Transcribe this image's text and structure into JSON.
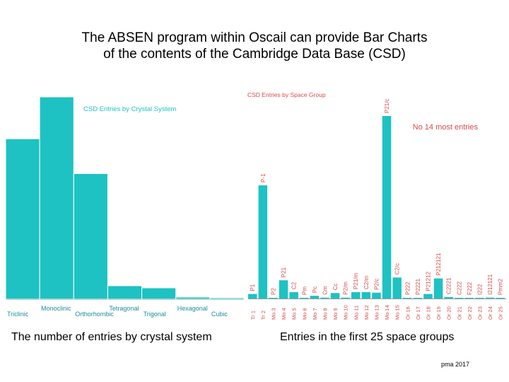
{
  "slide_title": "The ABSEN program within Oscail can provide Bar Charts\nof the contents of the Cambridge Data Base (CSD)",
  "left_caption": "The number of entries by crystal system",
  "right_caption": "Entries in the first 25 space groups",
  "credit": "pma 2017",
  "colors": {
    "bar": "#1ec2c2",
    "accent_text": "#d84a4a",
    "axis": "#9a9a9a"
  },
  "chart_data": [
    {
      "type": "bar",
      "title": "CSD Entries by Crystal System",
      "categories": [
        "Triclinic",
        "Monoclinic",
        "Orthorhombic",
        "Tetragonal",
        "Trigonal",
        "Hexagonal",
        "Cubic"
      ],
      "values": [
        226,
        285,
        177,
        19,
        16,
        3,
        2
      ],
      "ylim": [
        0,
        285
      ],
      "grid": false,
      "legend": "none"
    },
    {
      "type": "bar",
      "title": "CSD Entries by Space Group",
      "annotation": "No 14 most entries",
      "categories": [
        "Tr 1",
        "Tr 2",
        "Mo 3",
        "Mo 4",
        "Mo 5",
        "Mo 6",
        "Mo 7",
        "Mo 8",
        "Mo 9",
        "Mo 10",
        "Mo 11",
        "Mo 12",
        "Mo 13",
        "Mo 14",
        "Mo 15",
        "Or 16",
        "Or 17",
        "Or 18",
        "Or 19",
        "Or 20",
        "Or 21",
        "Or 22",
        "Or 23",
        "Or 24",
        "Or 25"
      ],
      "bar_labels": [
        "P1",
        "P-1",
        "P2",
        "P21",
        "C2",
        "Pm",
        "Pc",
        "Cm",
        "Cc",
        "P2/m",
        "P21/m",
        "C2/m",
        "P2/c",
        "P21/c",
        "C2/c",
        "P222",
        "P2221",
        "P21212",
        "P212121",
        "C2221",
        "C222",
        "F222",
        "I222",
        "I212121",
        "Pmm2"
      ],
      "values": [
        2.5,
        62,
        0.3,
        10,
        3.5,
        0.2,
        1.5,
        0.5,
        3,
        0.5,
        3.5,
        3.5,
        3.2,
        100,
        11.5,
        0.2,
        0.3,
        2.5,
        11,
        0.8,
        0.3,
        0.2,
        0.3,
        0.5,
        0.3
      ],
      "ylim": [
        0,
        100
      ],
      "grid": false,
      "legend": "none"
    }
  ]
}
